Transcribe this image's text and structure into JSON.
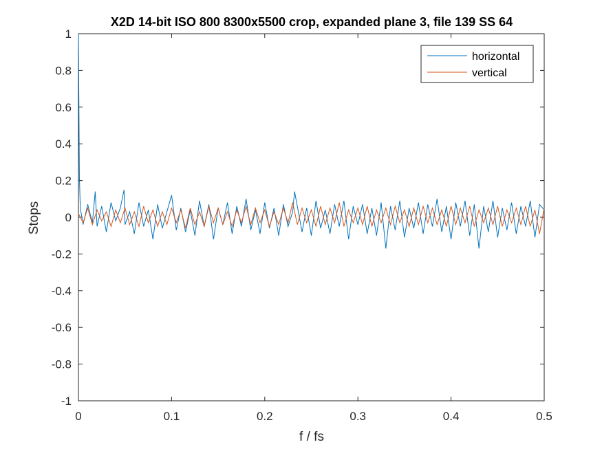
{
  "chart_data": {
    "type": "line",
    "title": "X2D 14-bit ISO 800 8300x5500 crop, expanded plane 3, file 139 SS 64",
    "xlabel": "f / fs",
    "ylabel": "Stops",
    "xlim": [
      0,
      0.5
    ],
    "ylim": [
      -1,
      1
    ],
    "xticks": [
      "0",
      "0.1",
      "0.2",
      "0.3",
      "0.4",
      "0.5"
    ],
    "yticks": [
      "-1",
      "-0.8",
      "-0.6",
      "-0.4",
      "-0.2",
      "0",
      "0.2",
      "0.4",
      "0.6",
      "0.8",
      "1"
    ],
    "grid": false,
    "legend_position": "top-right",
    "series": [
      {
        "name": "horizontal",
        "color": "#0072BD",
        "x": [
          0,
          0.001,
          0.002,
          0.005,
          0.01,
          0.015,
          0.018,
          0.02,
          0.025,
          0.03,
          0.035,
          0.04,
          0.045,
          0.049,
          0.05,
          0.055,
          0.06,
          0.065,
          0.07,
          0.075,
          0.08,
          0.085,
          0.09,
          0.095,
          0.1,
          0.105,
          0.11,
          0.115,
          0.12,
          0.125,
          0.13,
          0.135,
          0.14,
          0.145,
          0.15,
          0.155,
          0.16,
          0.165,
          0.17,
          0.175,
          0.18,
          0.185,
          0.19,
          0.195,
          0.2,
          0.205,
          0.21,
          0.215,
          0.22,
          0.225,
          0.23,
          0.232,
          0.235,
          0.24,
          0.245,
          0.25,
          0.255,
          0.26,
          0.265,
          0.27,
          0.275,
          0.28,
          0.285,
          0.29,
          0.295,
          0.3,
          0.305,
          0.31,
          0.315,
          0.32,
          0.325,
          0.33,
          0.335,
          0.34,
          0.345,
          0.35,
          0.355,
          0.36,
          0.365,
          0.37,
          0.375,
          0.38,
          0.385,
          0.39,
          0.395,
          0.4,
          0.405,
          0.41,
          0.415,
          0.42,
          0.425,
          0.43,
          0.435,
          0.44,
          0.445,
          0.45,
          0.455,
          0.46,
          0.465,
          0.47,
          0.475,
          0.48,
          0.485,
          0.49,
          0.495,
          0.5
        ],
        "values": [
          1.0,
          0.22,
          0.05,
          -0.04,
          0.07,
          -0.03,
          0.14,
          -0.05,
          0.06,
          -0.08,
          0.08,
          -0.02,
          0.05,
          0.15,
          -0.04,
          0.03,
          -0.09,
          0.08,
          -0.05,
          0.04,
          -0.12,
          0.07,
          -0.06,
          0.03,
          0.12,
          -0.07,
          0.05,
          -0.08,
          0.04,
          -0.1,
          0.09,
          -0.05,
          0.07,
          -0.12,
          0.05,
          -0.04,
          0.08,
          -0.09,
          0.06,
          -0.05,
          0.1,
          -0.07,
          0.04,
          -0.09,
          0.08,
          -0.06,
          0.05,
          -0.1,
          0.07,
          -0.05,
          0.03,
          0.14,
          0.06,
          -0.08,
          0.05,
          -0.1,
          0.09,
          -0.06,
          0.04,
          -0.09,
          0.07,
          -0.05,
          0.09,
          -0.12,
          0.06,
          -0.04,
          0.07,
          -0.09,
          0.05,
          -0.1,
          0.08,
          -0.17,
          0.06,
          -0.07,
          0.09,
          -0.11,
          0.05,
          -0.06,
          0.08,
          -0.09,
          0.07,
          -0.05,
          0.1,
          -0.08,
          0.06,
          -0.12,
          0.08,
          -0.05,
          0.09,
          -0.1,
          0.07,
          -0.17,
          0.06,
          -0.08,
          0.09,
          -0.11,
          0.05,
          -0.07,
          0.08,
          -0.09,
          0.06,
          -0.05,
          0.09,
          -0.11,
          0.07,
          0.04
        ]
      },
      {
        "name": "vertical",
        "color": "#D95319",
        "x": [
          0,
          0.005,
          0.01,
          0.015,
          0.02,
          0.025,
          0.03,
          0.035,
          0.04,
          0.045,
          0.05,
          0.055,
          0.06,
          0.065,
          0.07,
          0.075,
          0.08,
          0.085,
          0.09,
          0.095,
          0.1,
          0.105,
          0.11,
          0.115,
          0.12,
          0.125,
          0.13,
          0.135,
          0.14,
          0.145,
          0.15,
          0.155,
          0.16,
          0.165,
          0.17,
          0.175,
          0.18,
          0.185,
          0.19,
          0.195,
          0.2,
          0.205,
          0.21,
          0.215,
          0.22,
          0.225,
          0.23,
          0.235,
          0.24,
          0.245,
          0.25,
          0.255,
          0.26,
          0.265,
          0.27,
          0.275,
          0.28,
          0.285,
          0.29,
          0.295,
          0.3,
          0.305,
          0.31,
          0.315,
          0.32,
          0.325,
          0.33,
          0.335,
          0.34,
          0.345,
          0.35,
          0.355,
          0.36,
          0.365,
          0.37,
          0.375,
          0.38,
          0.385,
          0.39,
          0.395,
          0.4,
          0.405,
          0.41,
          0.415,
          0.42,
          0.425,
          0.43,
          0.435,
          0.44,
          0.445,
          0.45,
          0.455,
          0.46,
          0.465,
          0.47,
          0.475,
          0.48,
          0.485,
          0.49,
          0.495,
          0.5
        ],
        "values": [
          0.02,
          -0.03,
          0.05,
          -0.04,
          0.04,
          -0.02,
          0.03,
          -0.05,
          0.04,
          -0.03,
          0.05,
          -0.04,
          0.03,
          -0.05,
          0.06,
          -0.03,
          0.04,
          -0.05,
          0.03,
          -0.04,
          0.05,
          -0.03,
          0.04,
          -0.06,
          0.05,
          -0.04,
          0.03,
          -0.05,
          0.06,
          -0.03,
          0.05,
          -0.04,
          0.03,
          -0.05,
          0.04,
          -0.03,
          0.06,
          -0.04,
          0.05,
          -0.03,
          0.04,
          -0.05,
          0.03,
          -0.04,
          0.05,
          -0.03,
          0.08,
          -0.04,
          0.05,
          -0.03,
          0.04,
          -0.05,
          0.06,
          -0.04,
          0.05,
          -0.03,
          0.08,
          -0.05,
          0.04,
          -0.03,
          0.05,
          -0.04,
          0.06,
          -0.05,
          0.04,
          -0.03,
          0.05,
          -0.04,
          0.06,
          -0.03,
          0.04,
          -0.05,
          0.05,
          -0.04,
          0.06,
          -0.03,
          0.05,
          -0.04,
          0.04,
          -0.05,
          0.06,
          -0.04,
          0.05,
          -0.03,
          0.06,
          -0.05,
          0.04,
          -0.03,
          0.05,
          -0.04,
          0.06,
          -0.05,
          0.04,
          -0.03,
          0.05,
          -0.04,
          0.06,
          -0.05,
          0.04,
          -0.09,
          0.05
        ]
      }
    ]
  }
}
